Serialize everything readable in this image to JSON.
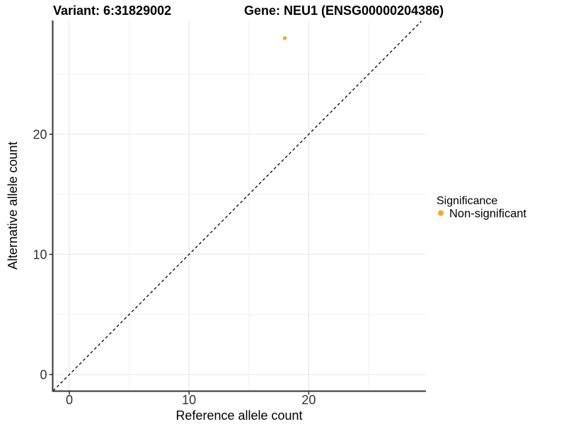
{
  "chart_data": {
    "type": "scatter",
    "titles": {
      "left": "Variant: 6:31829002",
      "right": "Gene: NEU1 (ENSG00000204386)"
    },
    "xlabel": "Reference allele count",
    "ylabel": "Alternative allele count",
    "xlim": [
      -1.4,
      29.8
    ],
    "ylim": [
      -1.4,
      29.5
    ],
    "x_ticks": [
      {
        "value": 0,
        "label": "0"
      },
      {
        "value": 10,
        "label": "10"
      },
      {
        "value": 20,
        "label": "20"
      }
    ],
    "y_ticks": [
      {
        "value": 0,
        "label": "0"
      },
      {
        "value": 10,
        "label": "10"
      },
      {
        "value": 20,
        "label": "20"
      }
    ],
    "x_minor_gridlines": [
      5,
      15,
      25
    ],
    "y_minor_gridlines": [
      5,
      15,
      25
    ],
    "grid": "major+minor",
    "points": [
      {
        "x": 18,
        "y": 28,
        "series": "Non-significant"
      }
    ],
    "identity_line": {
      "style": "dashed",
      "slope": 1,
      "intercept": 0,
      "from": -1.35,
      "to": 29.4
    },
    "legend": {
      "title": "Significance",
      "position": "right",
      "entries": [
        {
          "label": "Non-significant",
          "marker": "circle",
          "color": "#FAA52D"
        }
      ]
    },
    "colors": {
      "point": "#FAA52D",
      "grid_major": "#e4e4e4",
      "grid_minor": "#f1f1f1",
      "axis_line": "#333333",
      "tick": "#333333",
      "dashed_line": "#000000",
      "text": "#000000",
      "background": "#ffffff"
    }
  }
}
